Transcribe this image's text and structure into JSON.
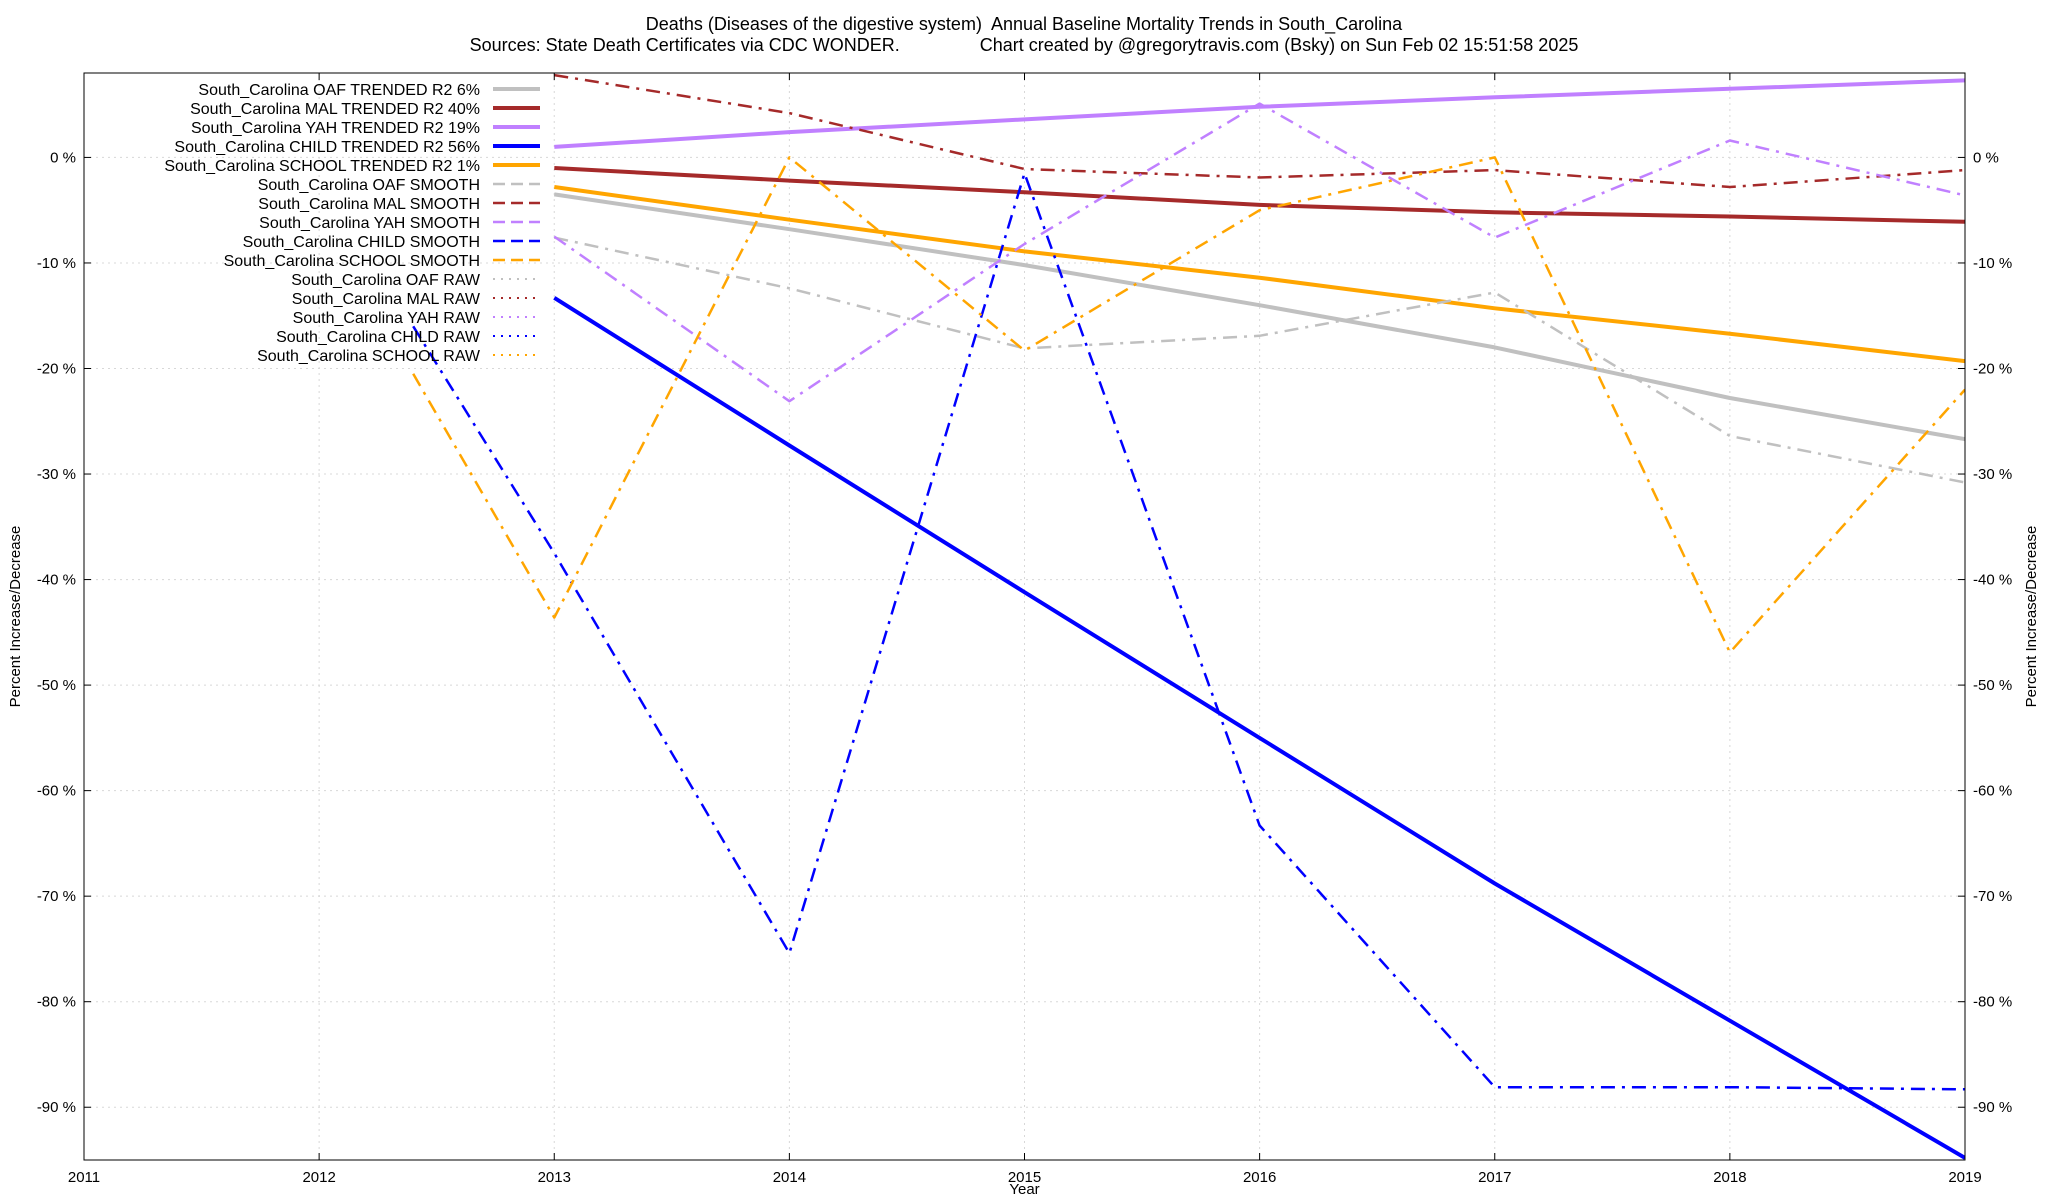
{
  "chart_data": {
    "type": "line",
    "title": "Deaths (Diseases of the digestive system)  Annual Baseline Mortality Trends in South_Carolina",
    "subtitle": "Sources: State Death Certificates via CDC WONDER.                Chart created by @gregorytravis.com (Bsky) on Sun Feb 02 15:51:58 2025",
    "xlabel": "Year",
    "ylabel": "Percent Increase/Decrease",
    "y2label": "Percent Increase/Decrease",
    "xlim": [
      2011,
      2019
    ],
    "ylim": [
      -95,
      8
    ],
    "xticks": [
      "2011",
      "2012",
      "2013",
      "2014",
      "2015",
      "2016",
      "2017",
      "2018",
      "2019"
    ],
    "yticks": [
      "0 %",
      "-10 %",
      "-20 %",
      "-30 %",
      "-40 %",
      "-50 %",
      "-60 %",
      "-70 %",
      "-80 %",
      "-90 %"
    ],
    "grid": true,
    "legend_position": "top-left",
    "series": [
      {
        "name": "South_Carolina OAF TRENDED R2   6%",
        "style": "trend",
        "color": "#c0c0c0",
        "x": [
          2013,
          2014,
          2015,
          2016,
          2017,
          2018,
          2019
        ],
        "y": [
          -3.5,
          -6.8,
          -10.2,
          -14,
          -18,
          -22.8,
          -26.7
        ]
      },
      {
        "name": "South_Carolina MAL TRENDED R2  40%",
        "style": "trend",
        "color": "#a52a2a",
        "x": [
          2013,
          2014,
          2015,
          2016,
          2017,
          2018,
          2019
        ],
        "y": [
          -1,
          -2.2,
          -3.3,
          -4.5,
          -5.2,
          -5.6,
          -6.1
        ]
      },
      {
        "name": "South_Carolina YAH TRENDED R2  19%",
        "style": "trend",
        "color": "#c080ff",
        "x": [
          2013,
          2014,
          2015,
          2016,
          2017,
          2018,
          2019
        ],
        "y": [
          1,
          2.4,
          3.6,
          4.8,
          5.7,
          6.5,
          7.3
        ]
      },
      {
        "name": "South_Carolina CHILD TRENDED R2  56%",
        "style": "trend",
        "color": "#0000ff",
        "x": [
          2013,
          2014,
          2015,
          2016,
          2017,
          2018,
          2019
        ],
        "y": [
          -13.3,
          -27.3,
          -41.2,
          -55,
          -68.8,
          -81.8,
          -94.8
        ]
      },
      {
        "name": "South_Carolina SCHOOL TRENDED R2   1%",
        "style": "trend",
        "color": "#ffa500",
        "x": [
          2013,
          2014,
          2015,
          2016,
          2017,
          2018,
          2019
        ],
        "y": [
          -2.8,
          -5.9,
          -8.9,
          -11.4,
          -14.3,
          -16.7,
          -19.3
        ]
      },
      {
        "name": "South_Carolina OAF SMOOTH",
        "style": "smooth",
        "color": "#c0c0c0",
        "x": [
          2013,
          2014,
          2015,
          2016,
          2017,
          2018,
          2019
        ],
        "y": [
          -7.6,
          -12.4,
          -18.1,
          -16.9,
          -12.8,
          -26.4,
          -30.8
        ]
      },
      {
        "name": "South_Carolina MAL SMOOTH",
        "style": "smooth",
        "color": "#a52a2a",
        "x": [
          2013,
          2014,
          2015,
          2016,
          2017,
          2018,
          2019
        ],
        "y": [
          7.8,
          4.2,
          -1.1,
          -1.9,
          -1.2,
          -2.8,
          -1.2
        ]
      },
      {
        "name": "South_Carolina YAH SMOOTH",
        "style": "smooth",
        "color": "#c080ff",
        "x": [
          2013,
          2014,
          2015,
          2016,
          2017,
          2018,
          2019
        ],
        "y": [
          -7.5,
          -23.1,
          -8.2,
          5.1,
          -7.6,
          1.6,
          -3.6
        ]
      },
      {
        "name": "South_Carolina CHILD SMOOTH",
        "style": "smooth",
        "color": "#0000ff",
        "x": [
          2012.4,
          2013,
          2014,
          2015,
          2016,
          2017,
          2018,
          2019
        ],
        "y": [
          -16,
          -37.5,
          -75.4,
          -1.5,
          -63.3,
          -88.1,
          -88.1,
          -88.3
        ]
      },
      {
        "name": "South_Carolina SCHOOL SMOOTH",
        "style": "smooth",
        "color": "#ffa500",
        "x": [
          2012.4,
          2013,
          2014,
          2015,
          2016,
          2017,
          2018,
          2019
        ],
        "y": [
          -20.5,
          -43.6,
          0,
          -18.3,
          -5,
          0,
          -46.9,
          -22
        ]
      },
      {
        "name": "South_Carolina OAF RAW",
        "style": "raw",
        "color": "#c0c0c0"
      },
      {
        "name": "South_Carolina MAL RAW",
        "style": "raw",
        "color": "#a52a2a"
      },
      {
        "name": "South_Carolina YAH RAW",
        "style": "raw",
        "color": "#c080ff"
      },
      {
        "name": "South_Carolina CHILD RAW",
        "style": "raw",
        "color": "#0000ff"
      },
      {
        "name": "South_Carolina SCHOOL RAW",
        "style": "raw",
        "color": "#ffa500"
      }
    ]
  }
}
